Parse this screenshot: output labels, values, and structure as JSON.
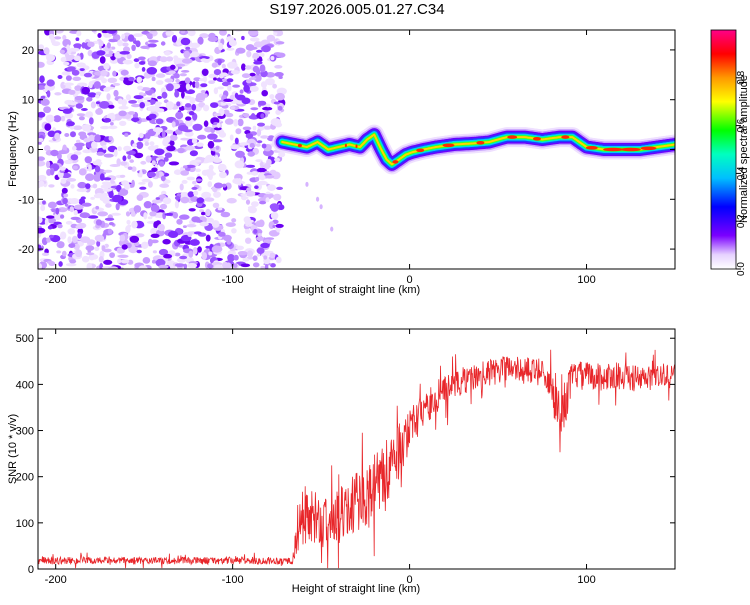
{
  "title": "S197.2026.005.01.27.C34",
  "chart_data": [
    {
      "type": "heatmap",
      "name": "spectrogram",
      "xlabel": "Height of straight line (km)",
      "ylabel": "Frequency (Hz)",
      "xlim": [
        -210,
        150
      ],
      "ylim": [
        -24,
        24
      ],
      "xticks": [
        -200,
        -100,
        0,
        100
      ],
      "yticks": [
        -20,
        -10,
        0,
        10,
        20
      ],
      "noise_region_x": [
        -210,
        -72
      ],
      "signal_ridge": {
        "x": [
          -72,
          -65,
          -58,
          -52,
          -46,
          -40,
          -34,
          -28,
          -24,
          -20,
          -16,
          -13,
          -10,
          -6,
          -2,
          2,
          8,
          15,
          25,
          35,
          45,
          55,
          65,
          75,
          85,
          92,
          100,
          110,
          120,
          130,
          140,
          150
        ],
        "freq": [
          1.5,
          1,
          0.5,
          1.5,
          0,
          0.5,
          1,
          0.5,
          2,
          3,
          0,
          -2,
          -3,
          -2,
          -1,
          -0.5,
          0,
          0.5,
          1,
          1.2,
          1.5,
          2.5,
          2.5,
          2,
          2.5,
          2.5,
          0.5,
          0,
          0,
          0,
          0.5,
          1
        ]
      },
      "colorbar": {
        "label": "Normalized spectral amplitude",
        "range": [
          0,
          1
        ],
        "ticks": [
          "0.0",
          "0.2",
          "0.4",
          "0.6",
          "0.8"
        ]
      }
    },
    {
      "type": "line",
      "name": "snr",
      "xlabel": "Height of straight line (km)",
      "ylabel": "SNR (10 * v/v)",
      "xlim": [
        -210,
        150
      ],
      "ylim": [
        0,
        520
      ],
      "xticks": [
        -200,
        -100,
        0,
        100
      ],
      "yticks": [
        0,
        100,
        200,
        300,
        400,
        500
      ],
      "color": "#e8262a",
      "envelope": {
        "x": [
          -210,
          -150,
          -100,
          -66,
          -62,
          -55,
          -45,
          -35,
          -25,
          -15,
          -5,
          5,
          15,
          25,
          35,
          45,
          55,
          65,
          75,
          80,
          85,
          88,
          92,
          100,
          110,
          120,
          130,
          140,
          150
        ],
        "mean": [
          18,
          18,
          18,
          18,
          120,
          110,
          100,
          130,
          160,
          200,
          260,
          330,
          370,
          400,
          415,
          425,
          435,
          430,
          425,
          410,
          320,
          360,
          420,
          420,
          415,
          420,
          410,
          415,
          420
        ],
        "spread": [
          8,
          8,
          8,
          8,
          70,
          60,
          60,
          60,
          70,
          70,
          60,
          40,
          35,
          30,
          30,
          30,
          30,
          30,
          30,
          40,
          80,
          50,
          30,
          30,
          30,
          30,
          30,
          30,
          30
        ]
      }
    }
  ]
}
